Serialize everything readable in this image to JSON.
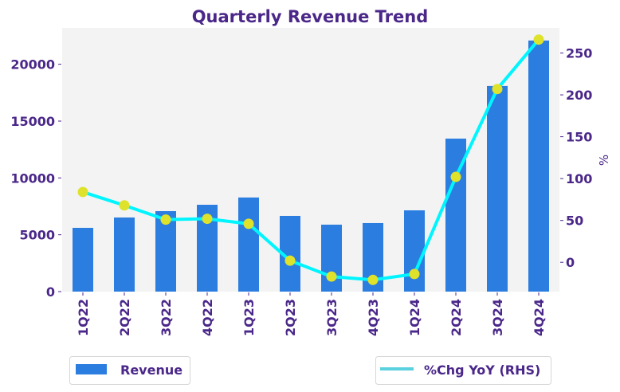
{
  "chart_data": {
    "type": "bar",
    "title": "Quarterly Revenue Trend",
    "xlabel": "",
    "ylabel": "",
    "ylabel_right": "%",
    "categories": [
      "1Q22",
      "2Q22",
      "3Q22",
      "4Q22",
      "1Q23",
      "2Q23",
      "3Q23",
      "4Q23",
      "1Q24",
      "2Q24",
      "3Q24",
      "4Q24"
    ],
    "series": [
      {
        "name": "Revenue",
        "type": "bar",
        "axis": "left",
        "color": "#2b7de0",
        "values": [
          5610,
          6520,
          7080,
          7640,
          8280,
          6660,
          5890,
          6030,
          7150,
          13460,
          18090,
          22090
        ]
      },
      {
        "name": "%Chg YoY (RHS)",
        "type": "line",
        "axis": "right",
        "color": "#00f5ff",
        "legend_color": "#5bd0de",
        "marker_color": "#dfe22a",
        "values": [
          84,
          68,
          51,
          52,
          46,
          2,
          -17,
          -21,
          -14,
          102,
          207,
          266
        ]
      }
    ],
    "ylim": [
      0,
      23200
    ],
    "yticks": [
      0,
      5000,
      10000,
      15000,
      20000
    ],
    "ylim_right": [
      -35,
      280
    ],
    "yticks_right": [
      0,
      50,
      100,
      150,
      200,
      250
    ],
    "grid": false,
    "legend": [
      {
        "label": "Revenue",
        "placement": "bottom-left"
      },
      {
        "label": "%Chg YoY (RHS)",
        "placement": "bottom-right"
      }
    ],
    "colors": {
      "text": "#4a2789",
      "plot_background": "#f3f3f3"
    }
  }
}
